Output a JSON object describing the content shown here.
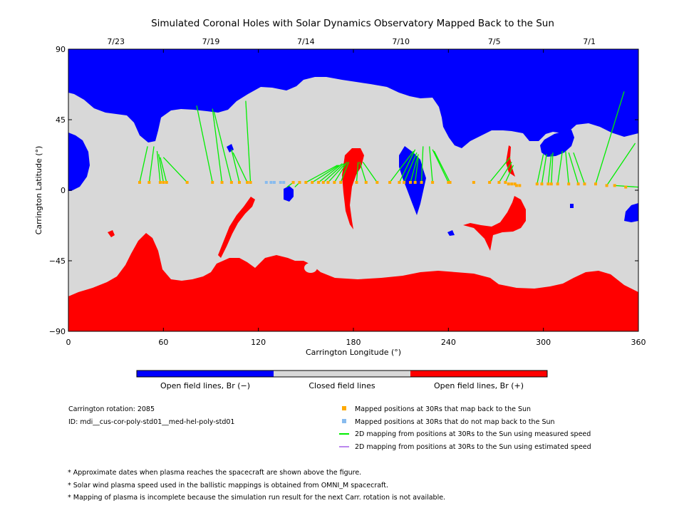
{
  "chart_data": {
    "type": "map",
    "title": "Simulated Coronal Holes with Solar Dynamics Observatory Mapped Back to the Sun",
    "xlabel": "Carrington Longitude (°)",
    "ylabel": "Carrington Latitude (°)",
    "xlim": [
      0,
      360
    ],
    "ylim": [
      -90,
      90
    ],
    "x_ticks": [
      "0",
      "60",
      "120",
      "180",
      "240",
      "300",
      "360"
    ],
    "y_ticks": [
      "90",
      "45",
      "0",
      "−45",
      "−90"
    ],
    "top_dates": [
      {
        "label": "7/23",
        "lon": 30
      },
      {
        "label": "7/19",
        "lon": 90
      },
      {
        "label": "7/14",
        "lon": 150
      },
      {
        "label": "7/10",
        "lon": 210
      },
      {
        "label": "7/5",
        "lon": 269
      },
      {
        "label": "7/1",
        "lon": 329
      }
    ],
    "regions": {
      "open_negative_color": "#0000ff",
      "closed_color": "#d8d8d8",
      "open_positive_color": "#ff0000"
    },
    "colorbar_labels": [
      "Open field lines, Br (−)",
      "Closed field lines",
      "Open field lines, Br (+)"
    ],
    "mapped_points": [
      {
        "lon": 45,
        "lat": 5,
        "foot_lon": 50,
        "foot_lat": 28
      },
      {
        "lon": 51,
        "lat": 5,
        "foot_lon": 54,
        "foot_lat": 28
      },
      {
        "lon": 58,
        "lat": 5,
        "foot_lon": 56,
        "foot_lat": 25
      },
      {
        "lon": 60,
        "lat": 5,
        "foot_lon": 57,
        "foot_lat": 23
      },
      {
        "lon": 62,
        "lat": 5,
        "foot_lon": 58,
        "foot_lat": 21
      },
      {
        "lon": 75,
        "lat": 5,
        "foot_lon": 60,
        "foot_lat": 21
      },
      {
        "lon": 91,
        "lat": 5,
        "foot_lon": 81,
        "foot_lat": 54
      },
      {
        "lon": 97,
        "lat": 5,
        "foot_lon": 91,
        "foot_lat": 52
      },
      {
        "lon": 103,
        "lat": 5,
        "foot_lon": 92,
        "foot_lat": 50
      },
      {
        "lon": 108,
        "lat": 5,
        "foot_lon": 103,
        "foot_lat": 26
      },
      {
        "lon": 113,
        "lat": 5,
        "foot_lon": 104,
        "foot_lat": 24
      },
      {
        "lon": 115,
        "lat": 5,
        "foot_lon": 112,
        "foot_lat": 57
      },
      {
        "lon": 125,
        "lat": 5
      },
      {
        "lon": 128,
        "lat": 5
      },
      {
        "lon": 130,
        "lat": 5
      },
      {
        "lon": 134,
        "lat": 5
      },
      {
        "lon": 136,
        "lat": 5
      },
      {
        "lon": 142,
        "lat": 5,
        "foot_lon": 138,
        "foot_lat": 2
      },
      {
        "lon": 146,
        "lat": 5,
        "foot_lon": 143,
        "foot_lat": 2
      },
      {
        "lon": 150,
        "lat": 5,
        "foot_lon": 170,
        "foot_lat": 16
      },
      {
        "lon": 154,
        "lat": 5,
        "foot_lon": 171,
        "foot_lat": 16
      },
      {
        "lon": 158,
        "lat": 5,
        "foot_lon": 173,
        "foot_lat": 17
      },
      {
        "lon": 161,
        "lat": 5,
        "foot_lon": 174,
        "foot_lat": 17
      },
      {
        "lon": 164,
        "lat": 5,
        "foot_lon": 175,
        "foot_lat": 17
      },
      {
        "lon": 168,
        "lat": 5,
        "foot_lon": 176,
        "foot_lat": 18
      },
      {
        "lon": 172,
        "lat": 5,
        "foot_lon": 177,
        "foot_lat": 18
      },
      {
        "lon": 182,
        "lat": 5,
        "foot_lon": 183,
        "foot_lat": 18
      },
      {
        "lon": 188,
        "lat": 5,
        "foot_lon": 184,
        "foot_lat": 18
      },
      {
        "lon": 195,
        "lat": 5,
        "foot_lon": 186,
        "foot_lat": 18
      },
      {
        "lon": 203,
        "lat": 5,
        "foot_lon": 218,
        "foot_lat": 25
      },
      {
        "lon": 209,
        "lat": 5,
        "foot_lon": 219,
        "foot_lat": 26
      },
      {
        "lon": 212,
        "lat": 5,
        "foot_lon": 220,
        "foot_lat": 24
      },
      {
        "lon": 216,
        "lat": 5,
        "foot_lon": 221,
        "foot_lat": 23
      },
      {
        "lon": 219,
        "lat": 5,
        "foot_lon": 221,
        "foot_lat": 21
      },
      {
        "lon": 223,
        "lat": 5,
        "foot_lon": 224,
        "foot_lat": 28
      },
      {
        "lon": 230,
        "lat": 5,
        "foot_lon": 228,
        "foot_lat": 28
      },
      {
        "lon": 240,
        "lat": 5,
        "foot_lon": 230,
        "foot_lat": 26
      },
      {
        "lon": 241,
        "lat": 5,
        "foot_lon": 231,
        "foot_lat": 25
      },
      {
        "lon": 256,
        "lat": 5
      },
      {
        "lon": 266,
        "lat": 5,
        "foot_lon": 279,
        "foot_lat": 21
      },
      {
        "lon": 272,
        "lat": 5,
        "foot_lon": 280,
        "foot_lat": 18
      },
      {
        "lon": 276,
        "lat": 5,
        "foot_lon": 281,
        "foot_lat": 16
      },
      {
        "lon": 278,
        "lat": 4
      },
      {
        "lon": 280,
        "lat": 4
      },
      {
        "lon": 282,
        "lat": 4
      },
      {
        "lon": 283,
        "lat": 3
      },
      {
        "lon": 285,
        "lat": 3
      },
      {
        "lon": 296,
        "lat": 4,
        "foot_lon": 300,
        "foot_lat": 23
      },
      {
        "lon": 299,
        "lat": 4,
        "foot_lon": 302,
        "foot_lat": 23
      },
      {
        "lon": 303,
        "lat": 4,
        "foot_lon": 305,
        "foot_lat": 23
      },
      {
        "lon": 305,
        "lat": 4,
        "foot_lon": 306,
        "foot_lat": 24
      },
      {
        "lon": 309,
        "lat": 4,
        "foot_lon": 312,
        "foot_lat": 25
      },
      {
        "lon": 316,
        "lat": 4,
        "foot_lon": 314,
        "foot_lat": 25
      },
      {
        "lon": 322,
        "lat": 4,
        "foot_lon": 316,
        "foot_lat": 24
      },
      {
        "lon": 326,
        "lat": 4,
        "foot_lon": 319,
        "foot_lat": 24
      },
      {
        "lon": 333,
        "lat": 4,
        "foot_lon": 351,
        "foot_lat": 63
      },
      {
        "lon": 340,
        "lat": 3,
        "foot_lon": 358,
        "foot_lat": 30
      },
      {
        "lon": 345,
        "lat": 3,
        "foot_lon": 360,
        "foot_lat": 2
      },
      {
        "lon": 352,
        "lat": 2
      }
    ],
    "info": {
      "rotation": "Carrington rotation: 2085",
      "id": "ID: mdi__cus-cor-poly-std01__med-hel-poly-std01"
    },
    "legend": [
      {
        "symbol": "square",
        "color": "#ffaa00",
        "label": "Mapped positions at 30Rs that map back to the Sun"
      },
      {
        "symbol": "square",
        "color": "#88bbee",
        "label": "Mapped positions at 30Rs that do not map back to the Sun"
      },
      {
        "symbol": "line",
        "color": "#00ee00",
        "label": "2D mapping from positions at 30Rs to the Sun using measured speed"
      },
      {
        "symbol": "line",
        "color": "#bb88ee",
        "label": "2D mapping from positions at 30Rs to the Sun using estimated speed"
      }
    ]
  },
  "notes": [
    "* Approximate dates when plasma reaches the spacecraft are shown above the figure.",
    "* Solar wind plasma speed used in the ballistic mappings is obtained from OMNI_M spacecraft.",
    "* Mapping of plasma is incomplete because the simulation run result for the next Carr. rotation is not available."
  ]
}
